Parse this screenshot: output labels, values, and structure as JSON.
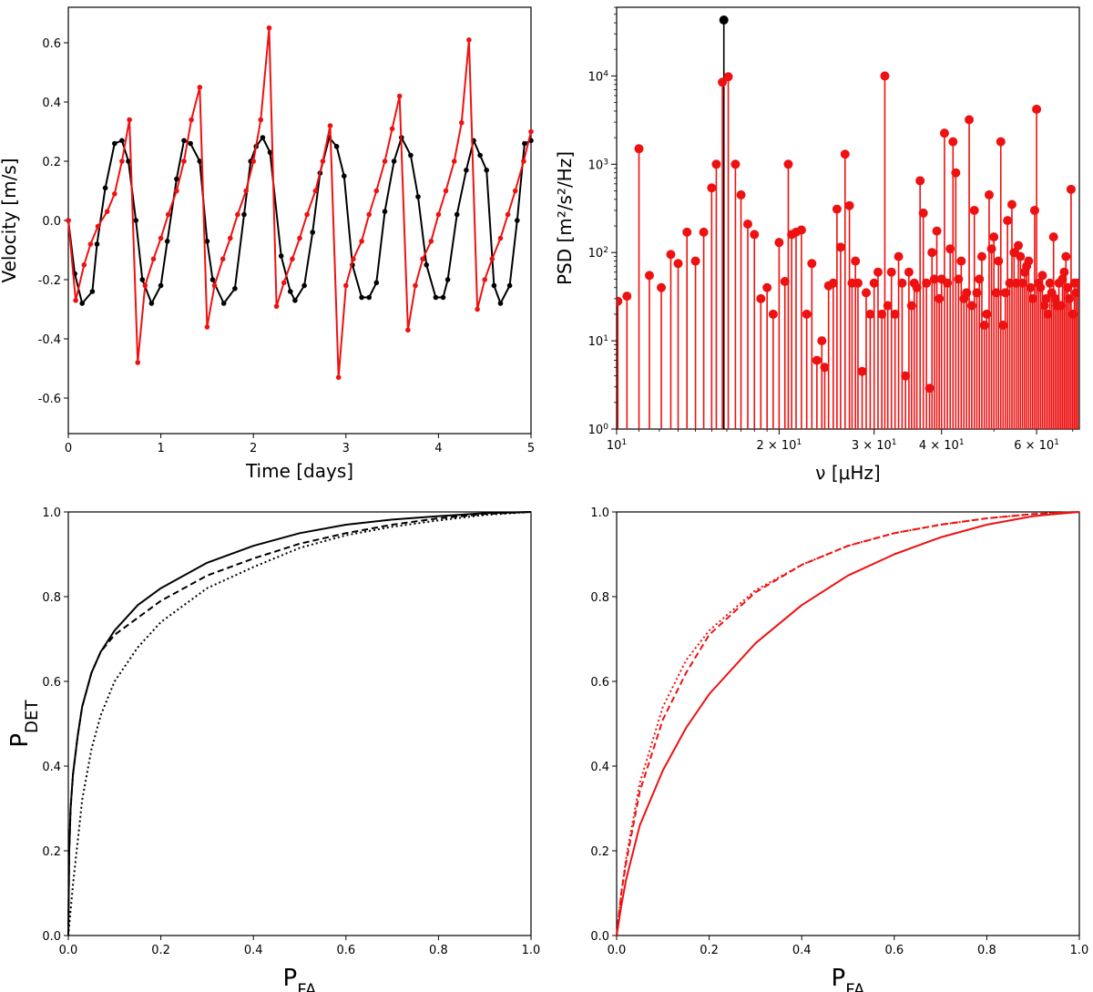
{
  "colors": {
    "black": "#000000",
    "red": "#ee1111"
  },
  "chart_data": [
    {
      "id": "velocity",
      "type": "line",
      "title": "",
      "xlabel": "Time [days]",
      "ylabel": "Velocity [m/s]",
      "xlim": [
        0,
        5
      ],
      "ylim": [
        -0.72,
        0.72
      ],
      "xticks": [
        0,
        1,
        2,
        3,
        4,
        5
      ],
      "xtick_labels": [
        "0",
        "1",
        "2",
        "3",
        "4",
        "5"
      ],
      "yticks": [
        -0.6,
        -0.4,
        -0.2,
        0.0,
        0.2,
        0.4,
        0.6
      ],
      "ytick_labels": [
        "-0.6",
        "-0.4",
        "-0.2",
        "0.0",
        "0.2",
        "0.4",
        "0.6"
      ],
      "series": [
        {
          "name": "black",
          "color": "#000000",
          "x": [
            0,
            0.07,
            0.15,
            0.26,
            0.31,
            0.4,
            0.5,
            0.58,
            0.65,
            0.73,
            0.8,
            0.9,
            1.0,
            1.07,
            1.17,
            1.25,
            1.32,
            1.42,
            1.5,
            1.56,
            1.68,
            1.8,
            1.9,
            1.97,
            2.03,
            2.1,
            2.18,
            2.3,
            2.4,
            2.45,
            2.55,
            2.64,
            2.72,
            2.82,
            2.9,
            2.98,
            3.07,
            3.17,
            3.25,
            3.33,
            3.42,
            3.52,
            3.6,
            3.7,
            3.78,
            3.87,
            3.97,
            4.05,
            4.1,
            4.2,
            4.3,
            4.38,
            4.45,
            4.52,
            4.6,
            4.67,
            4.77,
            4.85,
            4.93,
            5.0
          ],
          "y": [
            0.0,
            -0.18,
            -0.28,
            -0.24,
            -0.08,
            0.11,
            0.26,
            0.27,
            0.2,
            0.0,
            -0.2,
            -0.28,
            -0.22,
            -0.07,
            0.14,
            0.27,
            0.26,
            0.2,
            -0.07,
            -0.2,
            -0.28,
            -0.23,
            0.02,
            0.2,
            0.25,
            0.28,
            0.23,
            -0.12,
            -0.24,
            -0.27,
            -0.22,
            -0.04,
            0.16,
            0.28,
            0.25,
            0.15,
            -0.15,
            -0.26,
            -0.26,
            -0.21,
            0.03,
            0.2,
            0.28,
            0.22,
            0.08,
            -0.15,
            -0.26,
            -0.26,
            -0.2,
            0.02,
            0.17,
            0.27,
            0.22,
            0.17,
            -0.22,
            -0.28,
            -0.22,
            0.0,
            0.26,
            0.27
          ]
        },
        {
          "name": "red",
          "color": "#ee1111",
          "x": [
            0,
            0.08,
            0.17,
            0.24,
            0.32,
            0.42,
            0.5,
            0.58,
            0.66,
            0.75,
            0.83,
            0.92,
            1.0,
            1.08,
            1.17,
            1.25,
            1.33,
            1.42,
            1.5,
            1.58,
            1.67,
            1.75,
            1.83,
            1.92,
            2.0,
            2.08,
            2.17,
            2.25,
            2.33,
            2.42,
            2.5,
            2.58,
            2.67,
            2.75,
            2.83,
            2.92,
            3.0,
            3.08,
            3.17,
            3.25,
            3.33,
            3.42,
            3.5,
            3.58,
            3.67,
            3.75,
            3.83,
            3.92,
            4.0,
            4.08,
            4.17,
            4.25,
            4.33,
            4.42,
            4.5,
            4.58,
            4.67,
            4.75,
            4.83,
            4.92,
            5.0
          ],
          "y": [
            0.0,
            -0.27,
            -0.15,
            -0.08,
            -0.02,
            0.03,
            0.09,
            0.2,
            0.34,
            -0.48,
            -0.22,
            -0.13,
            -0.06,
            0.02,
            0.1,
            0.2,
            0.34,
            0.45,
            -0.36,
            -0.22,
            -0.13,
            -0.06,
            0.02,
            0.1,
            0.2,
            0.34,
            0.65,
            -0.29,
            -0.21,
            -0.13,
            -0.06,
            0.02,
            0.1,
            0.2,
            0.32,
            -0.53,
            -0.22,
            -0.13,
            -0.07,
            0.02,
            0.1,
            0.2,
            0.31,
            0.42,
            -0.37,
            -0.22,
            -0.13,
            -0.07,
            0.02,
            0.1,
            0.2,
            0.33,
            0.61,
            -0.3,
            -0.2,
            -0.13,
            -0.06,
            0.02,
            0.1,
            0.2,
            0.3
          ]
        }
      ]
    },
    {
      "id": "psd",
      "type": "stem",
      "title": "",
      "xlabel": "ν [μHz]",
      "ylabel": "PSD [m²/s²/Hz]",
      "xscale": "log",
      "yscale": "log",
      "xlim": [
        10,
        72
      ],
      "ylim": [
        1,
        60000
      ],
      "xticks": [
        10,
        20,
        30,
        40,
        60
      ],
      "xtick_labels": [
        {
          "base": "10",
          "exp": "1",
          "mant": ""
        },
        {
          "base": "10",
          "exp": "1",
          "mant": "2 × "
        },
        {
          "base": "10",
          "exp": "1",
          "mant": "3 × "
        },
        {
          "base": "10",
          "exp": "1",
          "mant": "4 × "
        },
        {
          "base": "10",
          "exp": "1",
          "mant": "6 × "
        }
      ],
      "yticks": [
        1,
        10,
        100,
        1000,
        10000
      ],
      "ytick_labels": [
        {
          "base": "10",
          "exp": "0"
        },
        {
          "base": "10",
          "exp": "1"
        },
        {
          "base": "10",
          "exp": "2"
        },
        {
          "base": "10",
          "exp": "3"
        },
        {
          "base": "10",
          "exp": "4"
        }
      ],
      "series": [
        {
          "name": "peak",
          "color": "#000000",
          "x": [
            15.8
          ],
          "y": [
            43000
          ]
        },
        {
          "name": "red",
          "color": "#ee1111",
          "x": [
            10.05,
            10.45,
            11.0,
            11.5,
            12.1,
            12.6,
            13.0,
            13.5,
            14.0,
            14.5,
            15.0,
            15.3,
            15.7,
            16.1,
            16.6,
            17.0,
            17.5,
            18.0,
            18.5,
            19.0,
            19.5,
            20.0,
            20.5,
            20.8,
            21.1,
            21.5,
            22.0,
            22.5,
            23.0,
            23.5,
            24.0,
            24.3,
            24.7,
            25.2,
            25.6,
            26.0,
            26.5,
            27.0,
            27.3,
            27.7,
            28.0,
            28.5,
            29.0,
            29.5,
            30.0,
            30.5,
            31.0,
            31.4,
            31.8,
            32.3,
            32.8,
            33.3,
            33.8,
            34.3,
            34.8,
            35.2,
            35.6,
            36.0,
            36.5,
            37.0,
            37.5,
            38.0,
            38.4,
            38.8,
            39.2,
            39.6,
            40.0,
            40.5,
            41.0,
            41.5,
            42.0,
            42.5,
            43.0,
            43.5,
            44.0,
            44.5,
            45.0,
            45.5,
            46.0,
            46.5,
            47.0,
            47.5,
            48.0,
            48.5,
            49.0,
            49.5,
            50.0,
            50.5,
            51.0,
            51.5,
            52.0,
            52.5,
            53.0,
            53.5,
            54.0,
            54.5,
            55.0,
            55.5,
            56.0,
            56.5,
            57.0,
            57.5,
            58.0,
            58.5,
            59.0,
            59.5,
            60.0,
            60.5,
            61.0,
            61.5,
            62.0,
            62.5,
            63.0,
            63.5,
            64.0,
            64.5,
            65.0,
            65.5,
            66.0,
            66.5,
            67.0,
            67.5,
            68.0,
            68.5,
            69.0,
            69.5,
            70.0,
            70.5,
            71.0,
            71.5
          ],
          "y": [
            28,
            32,
            1500,
            55,
            40,
            95,
            75,
            170,
            80,
            170,
            540,
            1000,
            8500,
            9800,
            1000,
            450,
            210,
            160,
            30,
            40,
            20,
            130,
            47,
            1000,
            160,
            170,
            180,
            20,
            75,
            6,
            10,
            5,
            42,
            45,
            310,
            115,
            1300,
            340,
            45,
            80,
            45,
            4.5,
            35,
            20,
            45,
            60,
            20,
            10000,
            25,
            60,
            20,
            90,
            45,
            4,
            60,
            25,
            45,
            40,
            650,
            280,
            45,
            2.9,
            100,
            50,
            175,
            30,
            50,
            2250,
            45,
            110,
            1800,
            800,
            50,
            80,
            30,
            35,
            3200,
            25,
            300,
            35,
            50,
            90,
            15,
            20,
            450,
            110,
            150,
            35,
            80,
            1800,
            15,
            35,
            230,
            45,
            350,
            100,
            45,
            120,
            90,
            45,
            60,
            70,
            80,
            40,
            30,
            300,
            4200,
            45,
            40,
            55,
            25,
            30,
            20,
            45,
            35,
            150,
            30,
            25,
            45,
            25,
            50,
            60,
            90,
            40,
            30,
            520,
            20,
            45,
            35,
            45
          ]
        }
      ]
    },
    {
      "id": "roc-black",
      "type": "line",
      "title": "",
      "xlabel": "P_FA",
      "ylabel": "P_DET",
      "xlim": [
        0,
        1
      ],
      "ylim": [
        0,
        1
      ],
      "xticks": [
        0,
        0.2,
        0.4,
        0.6,
        0.8,
        1.0
      ],
      "xtick_labels": [
        "0.0",
        "0.2",
        "0.4",
        "0.6",
        "0.8",
        "1.0"
      ],
      "yticks": [
        0,
        0.2,
        0.4,
        0.6,
        0.8,
        1.0
      ],
      "ytick_labels": [
        "0.0",
        "0.2",
        "0.4",
        "0.6",
        "0.8",
        "1.0"
      ],
      "series": [
        {
          "name": "solid",
          "color": "#000000",
          "style": "solid",
          "x": [
            0,
            0.002,
            0.005,
            0.01,
            0.02,
            0.03,
            0.05,
            0.07,
            0.1,
            0.15,
            0.2,
            0.3,
            0.4,
            0.5,
            0.6,
            0.7,
            0.8,
            0.9,
            1.0
          ],
          "y": [
            0,
            0.2,
            0.3,
            0.38,
            0.47,
            0.54,
            0.62,
            0.67,
            0.72,
            0.78,
            0.82,
            0.88,
            0.92,
            0.95,
            0.97,
            0.982,
            0.99,
            0.997,
            1.0
          ]
        },
        {
          "name": "dashed",
          "color": "#000000",
          "style": "dashed",
          "x": [
            0,
            0.002,
            0.005,
            0.01,
            0.02,
            0.03,
            0.05,
            0.07,
            0.1,
            0.15,
            0.2,
            0.3,
            0.4,
            0.5,
            0.6,
            0.7,
            0.8,
            0.9,
            1.0
          ],
          "y": [
            0,
            0.2,
            0.3,
            0.38,
            0.47,
            0.54,
            0.62,
            0.67,
            0.71,
            0.75,
            0.79,
            0.85,
            0.89,
            0.925,
            0.95,
            0.97,
            0.985,
            0.995,
            1.0
          ]
        },
        {
          "name": "dotted",
          "color": "#000000",
          "style": "dotted",
          "x": [
            0,
            0.01,
            0.02,
            0.03,
            0.05,
            0.07,
            0.1,
            0.15,
            0.2,
            0.3,
            0.4,
            0.5,
            0.6,
            0.7,
            0.8,
            0.9,
            1.0
          ],
          "y": [
            0,
            0.12,
            0.22,
            0.32,
            0.44,
            0.52,
            0.6,
            0.68,
            0.74,
            0.82,
            0.87,
            0.915,
            0.945,
            0.965,
            0.98,
            0.993,
            1.0
          ]
        }
      ]
    },
    {
      "id": "roc-red",
      "type": "line",
      "title": "",
      "xlabel": "P_FA",
      "ylabel": "",
      "xlim": [
        0,
        1
      ],
      "ylim": [
        0,
        1
      ],
      "xticks": [
        0,
        0.2,
        0.4,
        0.6,
        0.8,
        1.0
      ],
      "xtick_labels": [
        "0.0",
        "0.2",
        "0.4",
        "0.6",
        "0.8",
        "1.0"
      ],
      "yticks": [
        0,
        0.2,
        0.4,
        0.6,
        0.8,
        1.0
      ],
      "ytick_labels": [
        "0.0",
        "0.2",
        "0.4",
        "0.6",
        "0.8",
        "1.0"
      ],
      "series": [
        {
          "name": "solid",
          "color": "#ee1111",
          "style": "solid",
          "x": [
            0,
            0.01,
            0.02,
            0.05,
            0.1,
            0.15,
            0.2,
            0.3,
            0.4,
            0.5,
            0.6,
            0.7,
            0.8,
            0.9,
            1.0
          ],
          "y": [
            0,
            0.07,
            0.13,
            0.26,
            0.39,
            0.49,
            0.57,
            0.69,
            0.78,
            0.85,
            0.9,
            0.94,
            0.97,
            0.99,
            1.0
          ]
        },
        {
          "name": "dashed",
          "color": "#ee1111",
          "style": "dashed",
          "x": [
            0,
            0.01,
            0.02,
            0.05,
            0.1,
            0.15,
            0.2,
            0.3,
            0.4,
            0.5,
            0.6,
            0.7,
            0.8,
            0.9,
            1.0
          ],
          "y": [
            0,
            0.1,
            0.17,
            0.34,
            0.51,
            0.62,
            0.71,
            0.81,
            0.875,
            0.92,
            0.95,
            0.97,
            0.985,
            0.995,
            1.0
          ]
        },
        {
          "name": "dotted",
          "color": "#ee1111",
          "style": "dotted",
          "x": [
            0,
            0.01,
            0.02,
            0.05,
            0.1,
            0.15,
            0.2,
            0.3,
            0.4,
            0.5,
            0.6,
            0.7,
            0.8,
            0.9,
            1.0
          ],
          "y": [
            0,
            0.1,
            0.18,
            0.36,
            0.54,
            0.65,
            0.72,
            0.815,
            0.875,
            0.92,
            0.95,
            0.97,
            0.985,
            0.995,
            1.0
          ]
        }
      ]
    }
  ]
}
